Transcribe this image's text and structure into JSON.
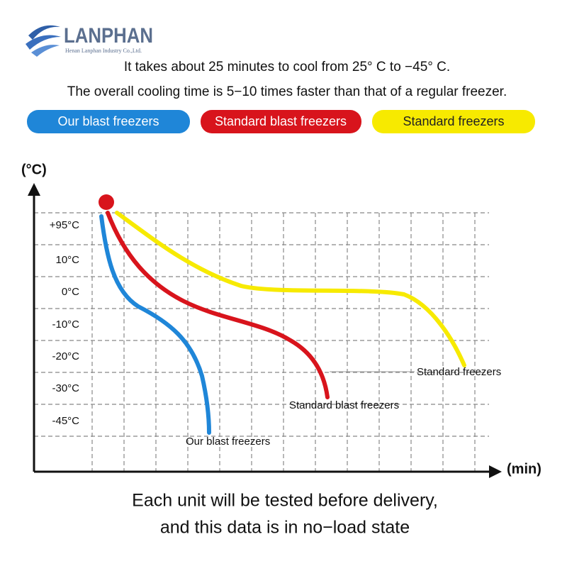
{
  "logo": {
    "name": "LANPHAN",
    "company": "Henan Lanphan Industry Co.,Ltd."
  },
  "intro": [
    "It takes about 25 minutes to cool from 25°  C to −45°  C.",
    "The overall cooling time is 5−10 times faster than that of a regular freezer."
  ],
  "legend": [
    "Our blast freezers",
    "Standard blast freezers",
    "Standard freezers"
  ],
  "axes": {
    "y_label": "(°C)",
    "x_label": "(min)",
    "y_ticks": [
      "+95°C",
      "10°C",
      "0°C",
      "-10°C",
      "-20°C",
      "-30°C",
      "-45°C"
    ]
  },
  "curve_labels": [
    "Our blast freezers",
    "Standard blast freezers",
    "Standard freezers"
  ],
  "footer": [
    "Each unit will be tested before delivery,",
    "and this data is in no−load state"
  ]
}
